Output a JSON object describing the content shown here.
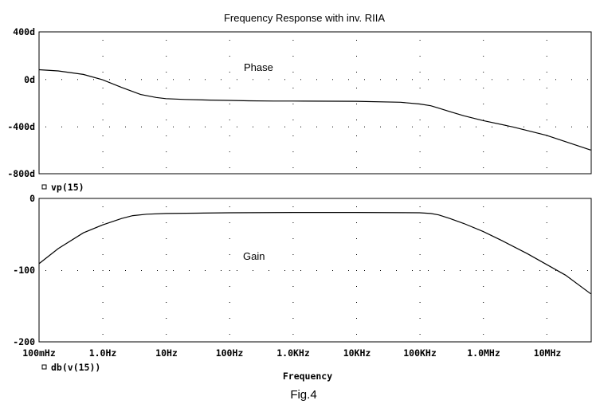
{
  "chart_data": [
    {
      "type": "line",
      "title": "Frequency Response with inv. RIIA",
      "annotation": "Phase",
      "legend": "vp(15)",
      "ylim": [
        -800,
        400
      ],
      "yticks": [
        "400d",
        "0d",
        "-400d",
        "-800d"
      ],
      "x_scale": "log",
      "xlim_hz": [
        0.1,
        50000000
      ],
      "series": [
        {
          "name": "vp(15)",
          "x": [
            0.1,
            0.2,
            0.5,
            1,
            2,
            4,
            7,
            10,
            20,
            50,
            100,
            200,
            500,
            1000,
            10000,
            50000,
            100000,
            150000,
            200000,
            300000,
            500000,
            1000000,
            3000000,
            10000000,
            30000000,
            50000000
          ],
          "y": [
            80,
            70,
            40,
            -5,
            -70,
            -130,
            -155,
            -165,
            -172,
            -177,
            -180,
            -183,
            -185,
            -185,
            -187,
            -195,
            -210,
            -225,
            -245,
            -275,
            -310,
            -350,
            -405,
            -475,
            -560,
            -600
          ]
        }
      ]
    },
    {
      "type": "line",
      "annotation": "Gain",
      "legend": "db(v(15))",
      "xlabel": "Frequency",
      "ylim": [
        -200,
        0
      ],
      "yticks": [
        "0",
        "-100",
        "-200"
      ],
      "x_scale": "log",
      "xlim_hz": [
        0.1,
        50000000
      ],
      "xticks": [
        "100mHz",
        "1.0Hz",
        "10Hz",
        "100Hz",
        "1.0KHz",
        "10KHz",
        "100KHz",
        "1.0MHz",
        "10MHz"
      ],
      "series": [
        {
          "name": "db(v(15))",
          "x": [
            0.1,
            0.2,
            0.5,
            1,
            2,
            3,
            5,
            10,
            30,
            100,
            1000,
            10000,
            100000,
            150000,
            200000,
            300000,
            500000,
            1000000,
            2000000,
            5000000,
            10000000,
            20000000,
            50000000
          ],
          "y": [
            -91,
            -70,
            -48,
            -37,
            -28,
            -24,
            -22,
            -21,
            -20.5,
            -20,
            -19.5,
            -19.5,
            -20,
            -21,
            -23,
            -28,
            -35,
            -46,
            -59,
            -77,
            -92,
            -107,
            -133
          ]
        }
      ]
    }
  ],
  "figure_caption": "Fig.4",
  "colors": {
    "background": "#ffffff",
    "ink": "#000000"
  }
}
